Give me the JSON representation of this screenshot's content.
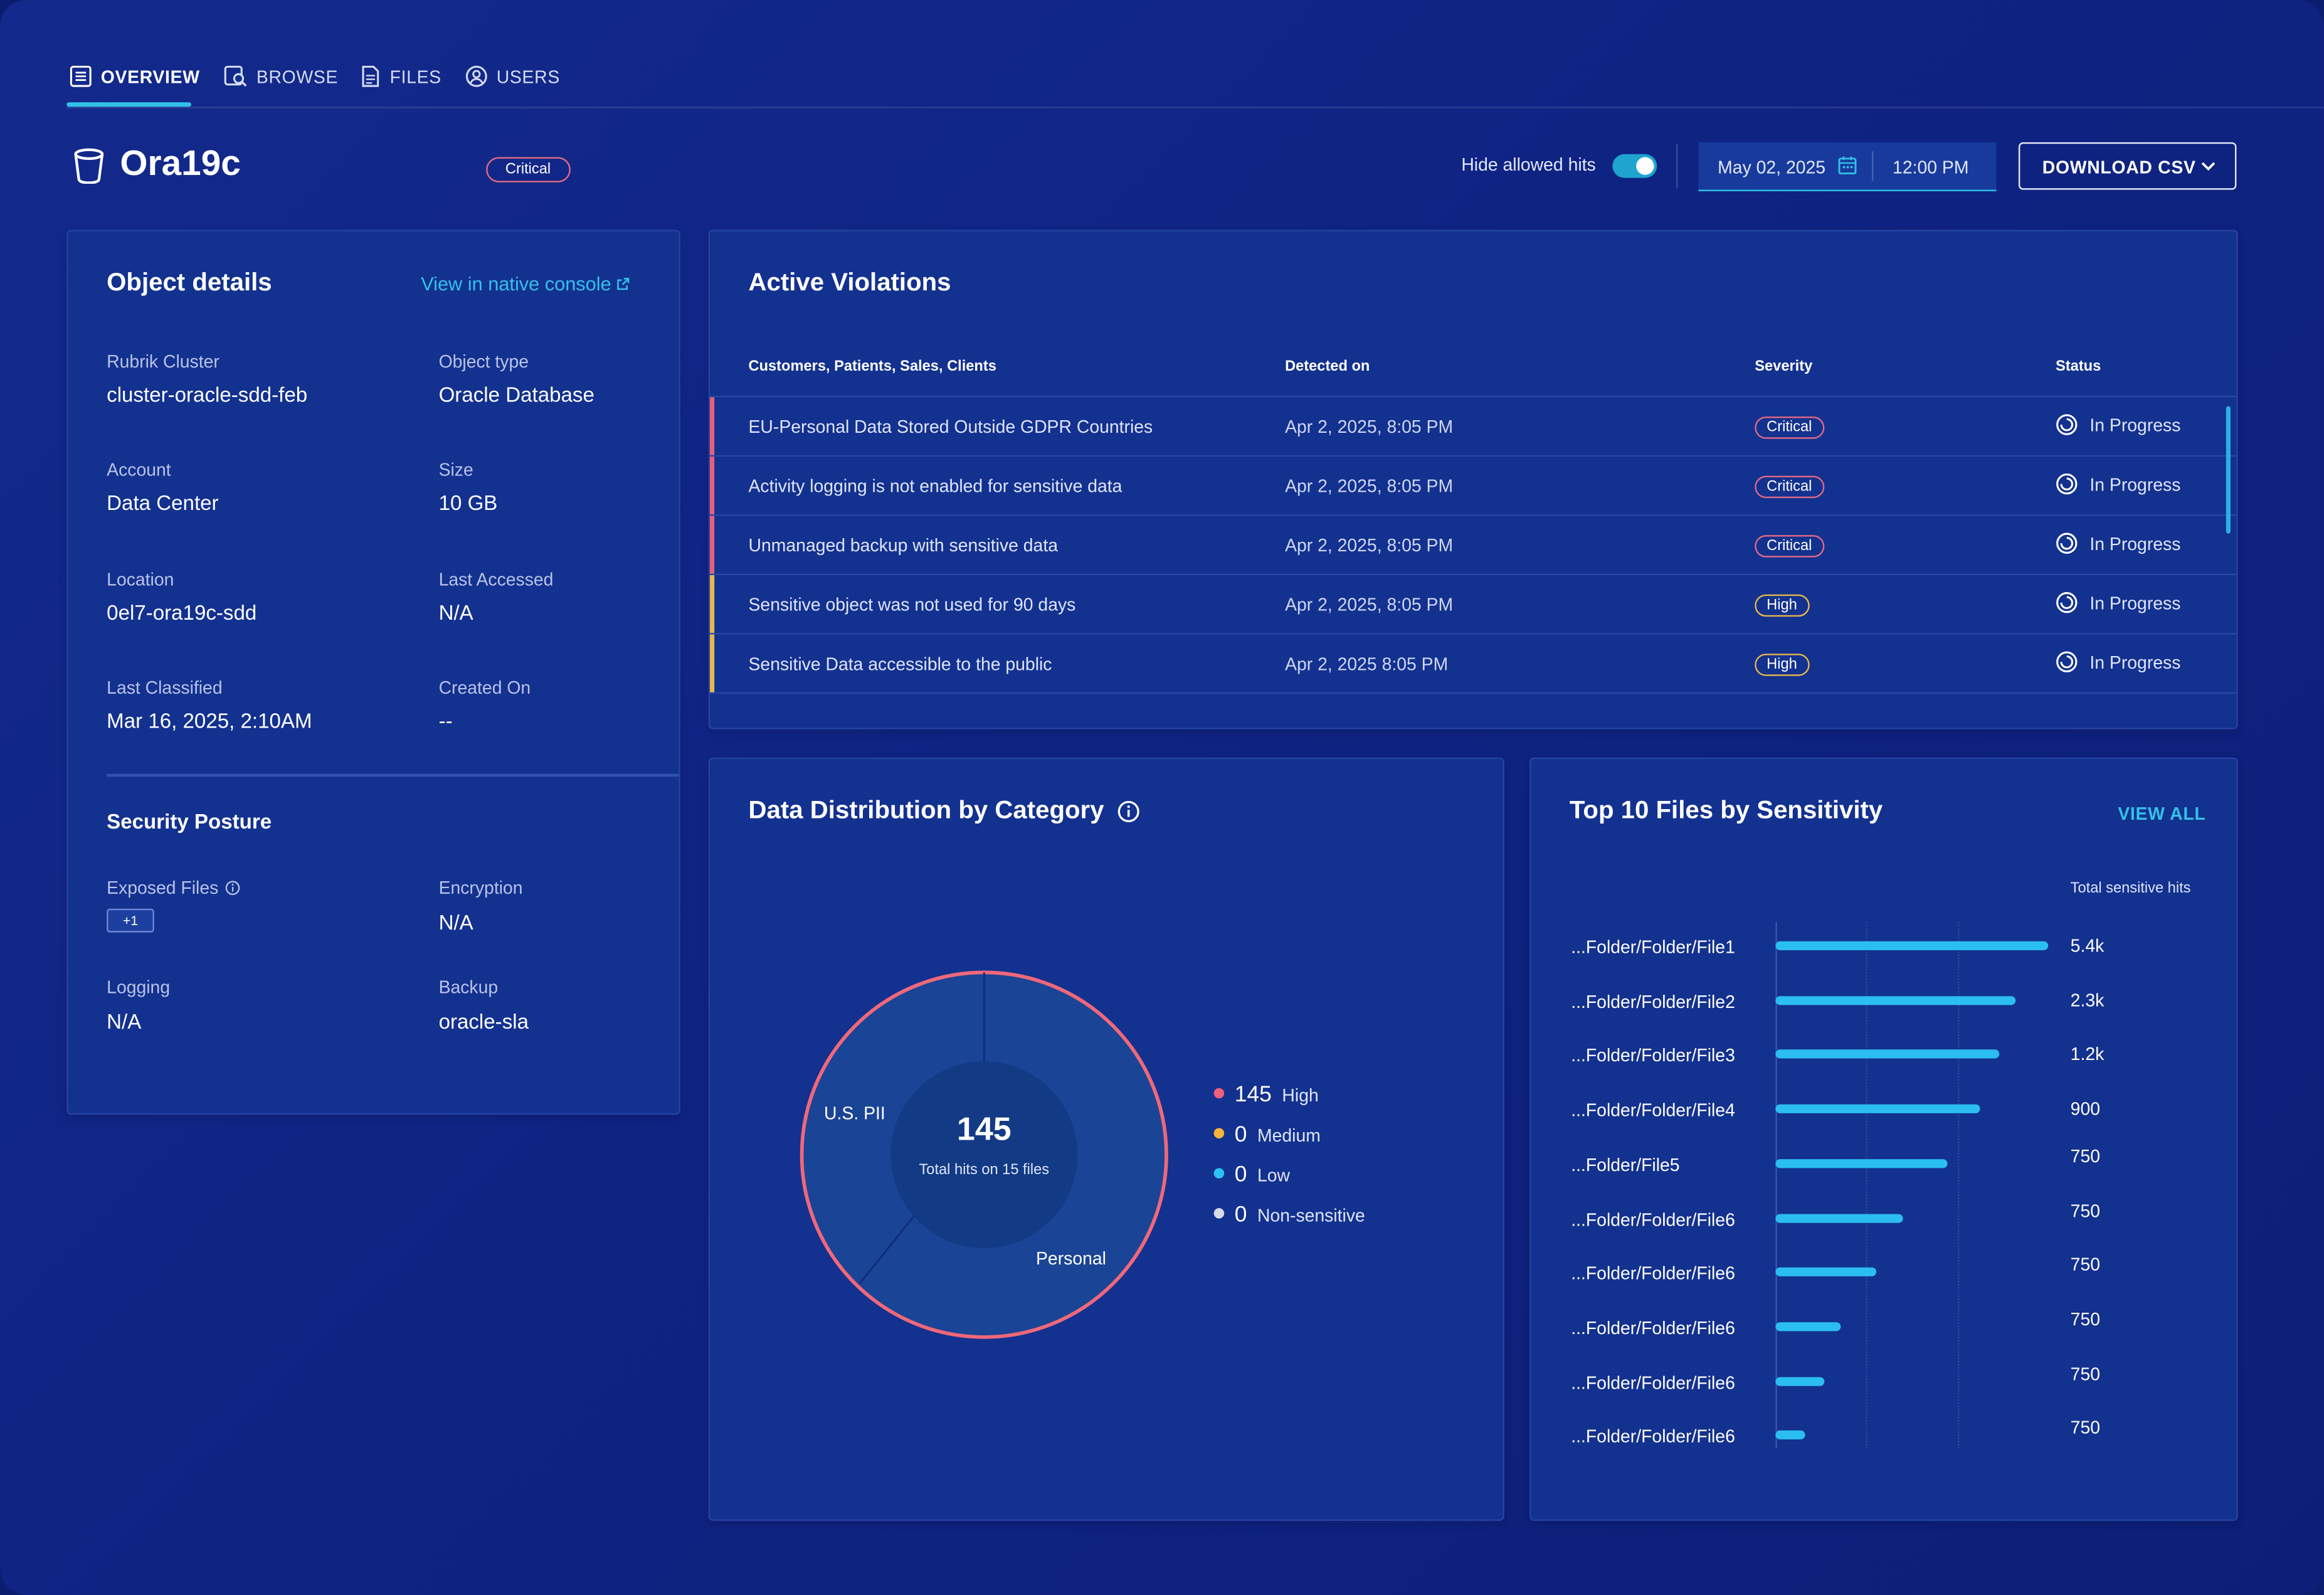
{
  "tabs": [
    {
      "label": "OVERVIEW",
      "icon": "list-icon",
      "active": true
    },
    {
      "label": "BROWSE",
      "icon": "browse-icon",
      "active": false
    },
    {
      "label": "FILES",
      "icon": "file-icon",
      "active": false
    },
    {
      "label": "USERS",
      "icon": "user-icon",
      "active": false
    }
  ],
  "header": {
    "title": "Ora19c",
    "severity_badge": "Critical",
    "hide_allowed_label": "Hide allowed hits",
    "hide_allowed_on": true,
    "date": "May 02, 2025",
    "time": "12:00 PM",
    "download_label": "DOWNLOAD CSV"
  },
  "object_details": {
    "title": "Object details",
    "console_link": "View in native console",
    "fields": [
      {
        "label": "Rubrik Cluster",
        "value": "cluster-oracle-sdd-feb"
      },
      {
        "label": "Object type",
        "value": "Oracle Database"
      },
      {
        "label": "Account",
        "value": "Data Center"
      },
      {
        "label": "Size",
        "value": "10 GB"
      },
      {
        "label": "Location",
        "value": "0el7-ora19c-sdd"
      },
      {
        "label": "Last Accessed",
        "value": "N/A"
      },
      {
        "label": "Last Classified",
        "value": "Mar 16, 2025, 2:10AM"
      },
      {
        "label": "Created On",
        "value": "--"
      }
    ]
  },
  "security_posture": {
    "title": "Security Posture",
    "exposed_files_label": "Exposed Files",
    "exposed_files_chip": "+1",
    "encryption_label": "Encryption",
    "encryption_value": "N/A",
    "logging_label": "Logging",
    "logging_value": "N/A",
    "backup_label": "Backup",
    "backup_value": "oracle-sla"
  },
  "violations": {
    "title": "Active Violations",
    "columns": [
      "Customers, Patients, Sales, Clients",
      "Detected on",
      "Severity",
      "Status"
    ],
    "rows": [
      {
        "name": "EU-Personal Data Stored Outside GDPR Countries",
        "detected": "Apr 2, 2025, 8:05 PM",
        "severity": "Critical",
        "status": "In Progress"
      },
      {
        "name": "Activity logging is not enabled for sensitive data",
        "detected": "Apr 2, 2025, 8:05 PM",
        "severity": "Critical",
        "status": "In Progress"
      },
      {
        "name": "Unmanaged backup with sensitive data",
        "detected": "Apr 2, 2025, 8:05 PM",
        "severity": "Critical",
        "status": "In Progress"
      },
      {
        "name": "Sensitive object was not used for 90 days",
        "detected": "Apr 2, 2025, 8:05 PM",
        "severity": "High",
        "status": "In Progress"
      },
      {
        "name": "Sensitive Data accessible to the public",
        "detected": "Apr 2, 2025 8:05 PM",
        "severity": "High",
        "status": "In Progress"
      }
    ]
  },
  "distribution": {
    "title": "Data Distribution by Category",
    "center_value": "145",
    "center_caption": "Total hits on 15 files",
    "segment_labels": [
      "U.S. PII",
      "Personal"
    ],
    "legend": [
      {
        "value": "145",
        "label": "High",
        "color": "#f0607a"
      },
      {
        "value": "0",
        "label": "Medium",
        "color": "#f3b63a"
      },
      {
        "value": "0",
        "label": "Low",
        "color": "#2bc4f2"
      },
      {
        "value": "0",
        "label": "Non-sensitive",
        "color": "#d7dbe8"
      }
    ]
  },
  "top_files": {
    "title": "Top 10 Files by Sensitivity",
    "view_all": "VIEW ALL",
    "column_header": "Total sensitive hits",
    "rows": [
      {
        "name": "...Folder/Folder/File1",
        "value": "5.4k",
        "fill": 1.0
      },
      {
        "name": "...Folder/Folder/File2",
        "value": "2.3k",
        "fill": 0.88
      },
      {
        "name": "...Folder/Folder/File3",
        "value": "1.2k",
        "fill": 0.82
      },
      {
        "name": "...Folder/Folder/File4",
        "value": "900",
        "fill": 0.75
      },
      {
        "name": "...Folder/File5",
        "value": "750",
        "fill": 0.63
      },
      {
        "name": "...Folder/Folder/File6",
        "value": "750",
        "fill": 0.47
      },
      {
        "name": "...Folder/Folder/File6",
        "value": "750",
        "fill": 0.37
      },
      {
        "name": "...Folder/Folder/File6",
        "value": "750",
        "fill": 0.24
      },
      {
        "name": "...Folder/Folder/File6",
        "value": "750",
        "fill": 0.18
      },
      {
        "name": "...Folder/Folder/File6",
        "value": "750",
        "fill": 0.11
      }
    ]
  }
}
